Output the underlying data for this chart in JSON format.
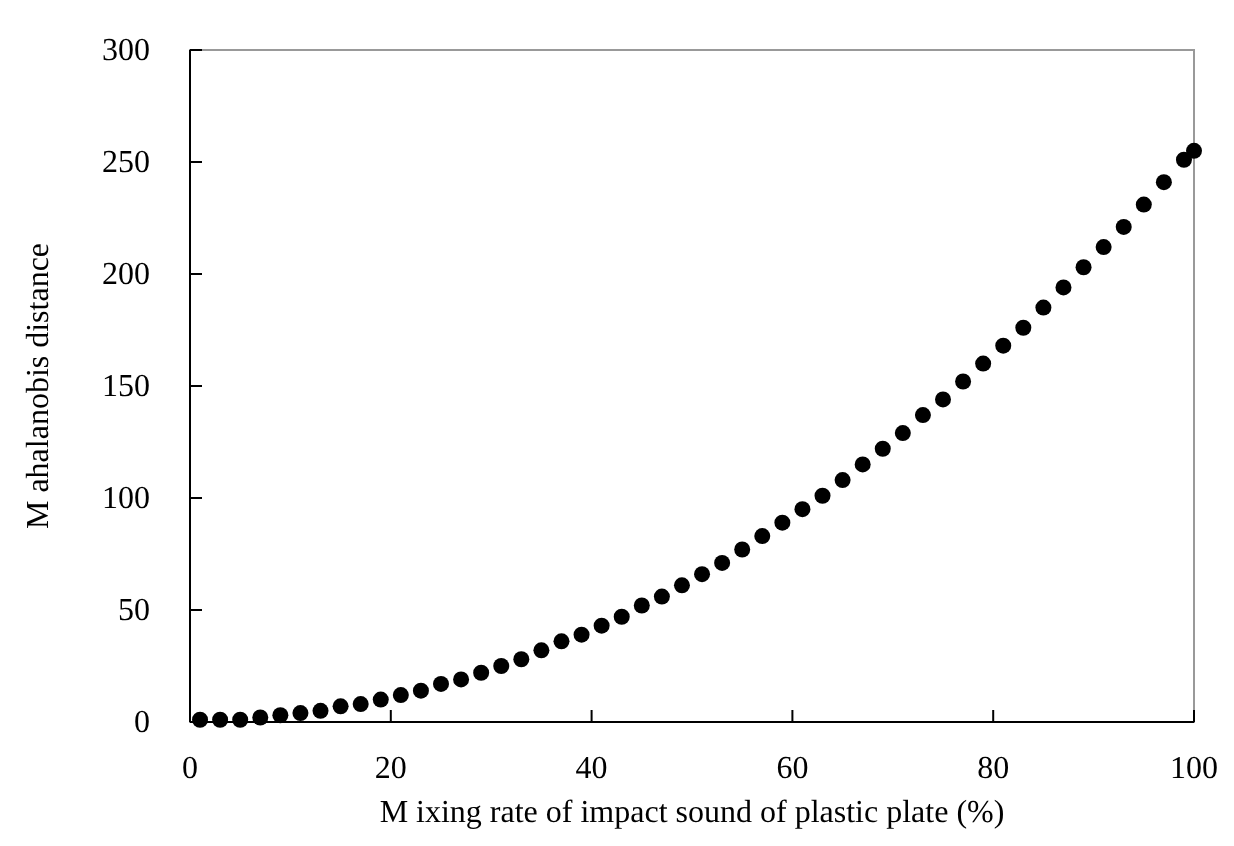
{
  "chart_data": {
    "type": "scatter",
    "xlabel": "M ixing rate of impact sound of plastic plate (%)",
    "ylabel": "M ahalanobis distance",
    "x": [
      1,
      3,
      5,
      7,
      9,
      11,
      13,
      15,
      17,
      19,
      21,
      23,
      25,
      27,
      29,
      31,
      33,
      35,
      37,
      39,
      41,
      43,
      45,
      47,
      49,
      51,
      53,
      55,
      57,
      59,
      61,
      63,
      65,
      67,
      69,
      71,
      73,
      75,
      77,
      79,
      81,
      83,
      85,
      87,
      89,
      91,
      93,
      95,
      97,
      99,
      100
    ],
    "series": [
      {
        "color": "#000000",
        "values": [
          1,
          1,
          1,
          2,
          3,
          4,
          5,
          7,
          8,
          10,
          12,
          14,
          17,
          19,
          22,
          25,
          28,
          32,
          36,
          39,
          43,
          47,
          52,
          56,
          61,
          66,
          71,
          77,
          83,
          89,
          95,
          101,
          108,
          115,
          122,
          129,
          137,
          144,
          152,
          160,
          168,
          176,
          185,
          194,
          203,
          212,
          221,
          231,
          241,
          251,
          255
        ]
      }
    ],
    "xlim": [
      0,
      100
    ],
    "xticks": [
      0,
      20,
      40,
      60,
      80,
      100
    ],
    "ylim": [
      0,
      300
    ],
    "yticks": [
      0,
      50,
      100,
      150,
      200,
      250,
      300
    ],
    "grid": false,
    "marker": "circle"
  }
}
